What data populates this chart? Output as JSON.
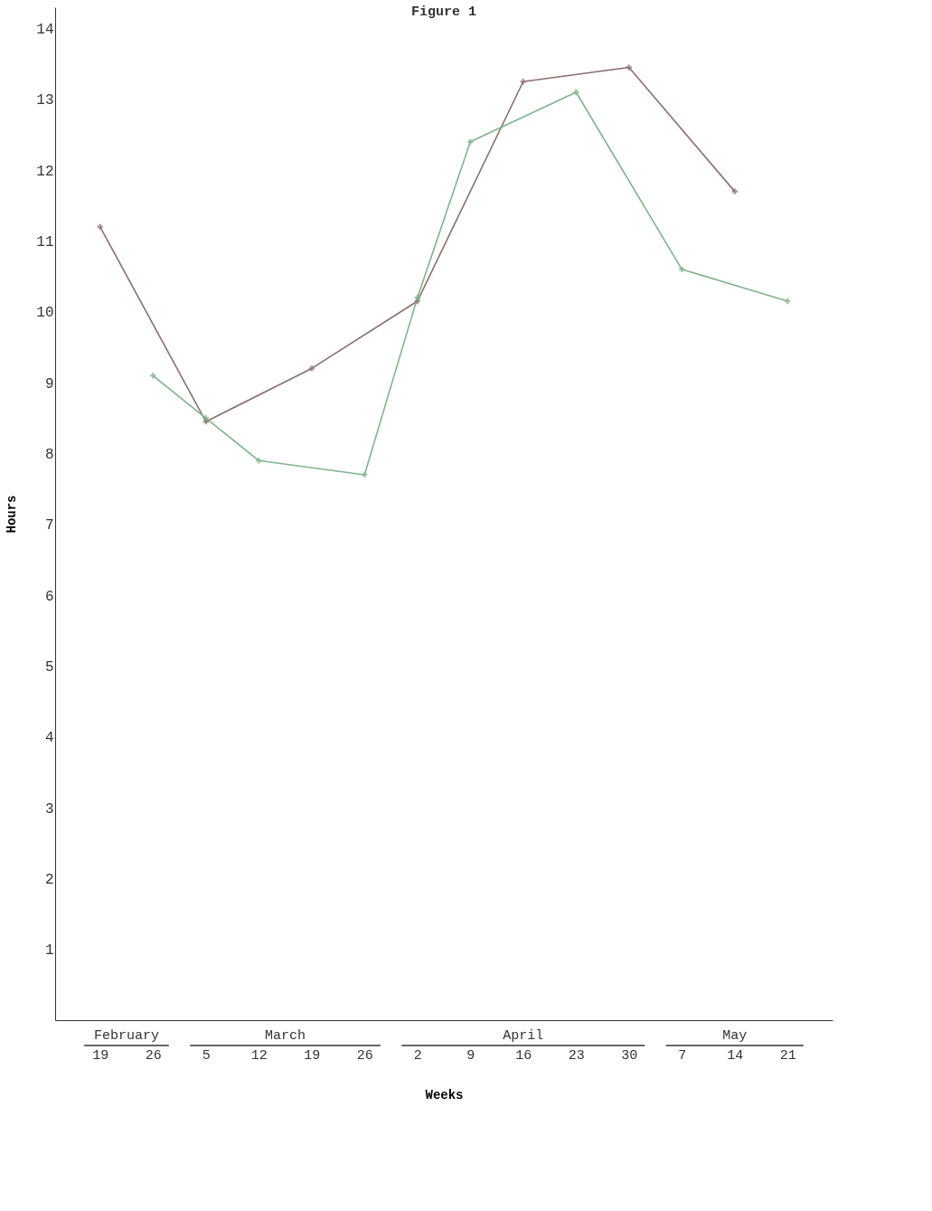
{
  "chart_data": {
    "type": "line",
    "title": "Figure 1",
    "xlabel": "Weeks",
    "ylabel": "Hours",
    "categories": [
      "19",
      "26",
      "5",
      "12",
      "19",
      "26",
      "2",
      "9",
      "16",
      "23",
      "30",
      "7",
      "14",
      "21"
    ],
    "series": [
      {
        "color": "#8b6f6a",
        "values": [
          11.2,
          null,
          8.45,
          null,
          9.2,
          null,
          10.15,
          null,
          13.25,
          null,
          13.45,
          null,
          11.7,
          null
        ]
      },
      {
        "color": "#7fb48a",
        "values": [
          null,
          9.1,
          8.5,
          7.9,
          null,
          7.7,
          10.2,
          12.4,
          null,
          13.1,
          null,
          10.6,
          null,
          10.15
        ]
      }
    ],
    "annotations": [
      "February",
      "March",
      "April",
      "May"
    ],
    "ylim": [
      0,
      14.3
    ],
    "yticks": [
      1,
      2,
      3,
      4,
      5,
      6,
      7,
      8,
      9,
      10,
      11,
      12,
      13,
      14
    ],
    "grid": false,
    "legend": false,
    "marker": "cross",
    "line_style": "solid"
  }
}
